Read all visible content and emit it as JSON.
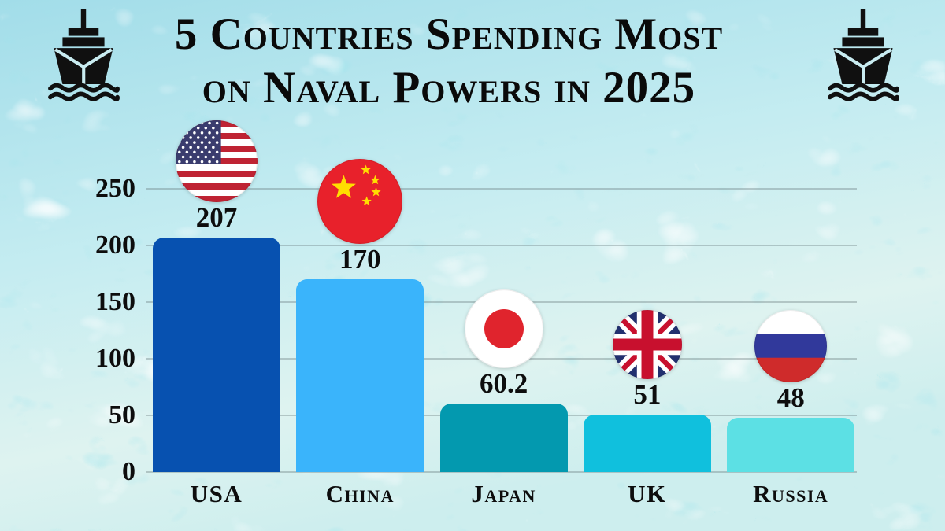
{
  "title": {
    "line1": "5 Countries Spending Most",
    "line2": "on Naval Powers in 2025"
  },
  "decorations": {
    "top_left_icon": "ship-icon",
    "top_right_icon": "ship-icon"
  },
  "chart_data": {
    "type": "bar",
    "title": "5 Countries Spending Most on Naval Powers in 2025",
    "categories": [
      "USA",
      "China",
      "Japan",
      "UK",
      "Russia"
    ],
    "values": [
      207,
      170,
      60.2,
      51,
      48
    ],
    "value_labels": [
      "207",
      "170",
      "60.2",
      "51",
      "48"
    ],
    "yticks": [
      0,
      50,
      100,
      150,
      200,
      250
    ],
    "ylim": [
      0,
      250
    ],
    "grid": true,
    "legend_position": "none",
    "bar_colors": [
      "#0751b0",
      "#3ab4fb",
      "#0399af",
      "#10c0dd",
      "#5ce0e4"
    ],
    "flag_icons": [
      "usa-flag-icon",
      "china-flag-icon",
      "japan-flag-icon",
      "uk-flag-icon",
      "russia-flag-icon"
    ],
    "flag_colors": {
      "usa_red": "#bf2333",
      "usa_blue": "#3a3c6e",
      "china_red": "#e8212b",
      "china_yellow": "#ffde00",
      "japan_red": "#e0242d",
      "uk_blue": "#22306f",
      "uk_red": "#c8102e",
      "russia_blue": "#31399b",
      "russia_red": "#cf2b2b"
    }
  }
}
